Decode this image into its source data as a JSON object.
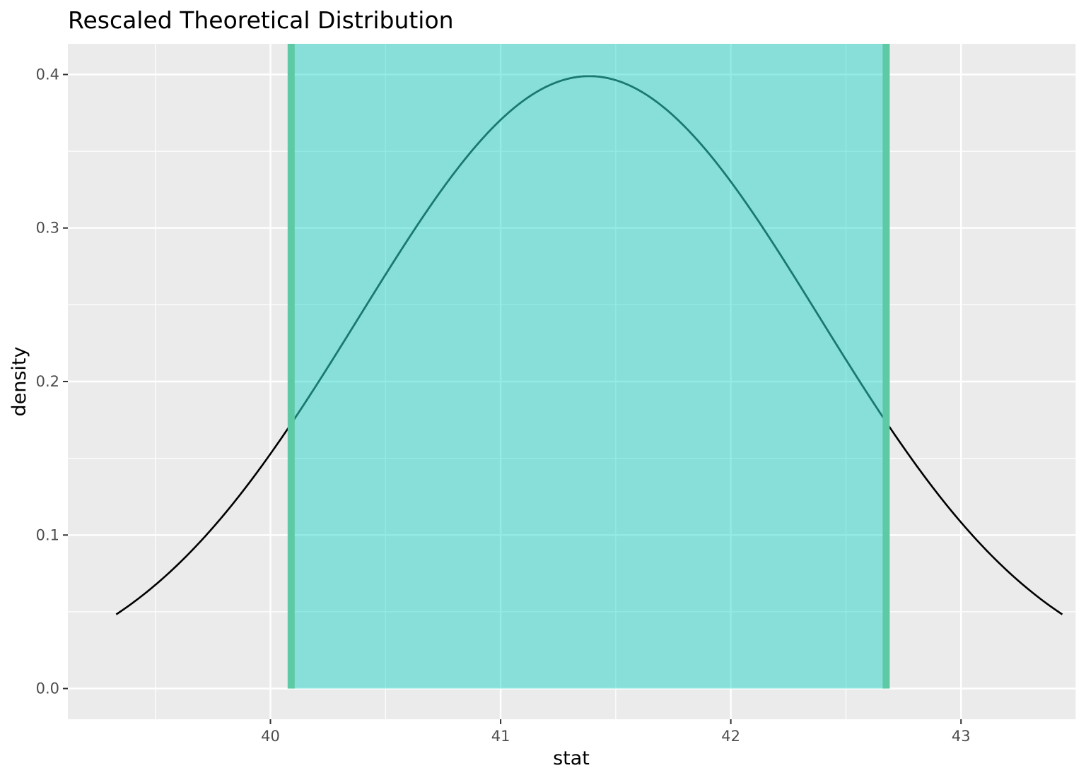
{
  "chart_data": {
    "type": "line",
    "title": "Rescaled Theoretical Distribution",
    "xlabel": "stat",
    "ylabel": "density",
    "xlim": [
      39.12,
      43.5
    ],
    "ylim": [
      -0.02,
      0.42
    ],
    "x_ticks": [
      40,
      41,
      42,
      43
    ],
    "x_tick_labels": [
      "40",
      "41",
      "42",
      "43"
    ],
    "y_ticks": [
      0.0,
      0.1,
      0.2,
      0.3,
      0.4
    ],
    "y_tick_labels": [
      "0.0",
      "0.1",
      "0.2",
      "0.3",
      "0.4"
    ],
    "x_minor_ticks": [
      39.5,
      40.5,
      41.5,
      42.5,
      43.5
    ],
    "y_minor_ticks": [
      0.05,
      0.15,
      0.25,
      0.35
    ],
    "grid": true,
    "curve": {
      "distribution": "normal",
      "mean": 41.385,
      "sd": 1.0,
      "x_range": [
        39.33,
        43.44
      ],
      "color": "#000000"
    },
    "interval": {
      "lower": 40.09,
      "upper": 42.675,
      "fill": "#00d0c0",
      "edge": "#5ecaa5",
      "curve_inside_color": "#1a7a70"
    },
    "colors": {
      "panel": "#ebebeb",
      "grid": "#ffffff"
    }
  }
}
